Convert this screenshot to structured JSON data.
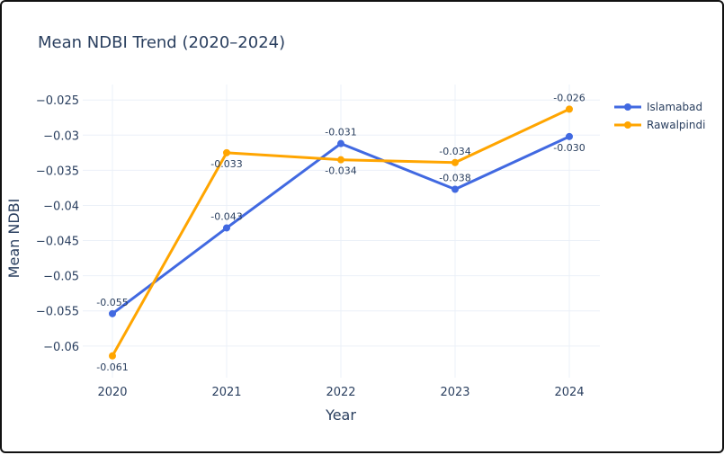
{
  "chart_data": {
    "type": "line",
    "title": "Mean NDBI Trend (2020–2024)",
    "xlabel": "Year",
    "ylabel": "Mean NDBI",
    "x": [
      "2020",
      "2021",
      "2022",
      "2023",
      "2024"
    ],
    "ylim": [
      -0.0645,
      -0.0228
    ],
    "yticks": [
      -0.025,
      -0.03,
      -0.035,
      -0.04,
      -0.045,
      -0.05,
      -0.055,
      -0.06
    ],
    "ytick_labels": [
      "−0.025",
      "−0.03",
      "−0.035",
      "−0.04",
      "−0.045",
      "−0.05",
      "−0.055",
      "−0.06"
    ],
    "grid": true,
    "legend_position": "top-right",
    "series": [
      {
        "name": "Islamabad",
        "color": "#4169e1",
        "values": [
          -0.0554,
          -0.0432,
          -0.0312,
          -0.0377,
          -0.0302
        ],
        "labels": [
          "-0.055",
          "-0.043",
          "-0.031",
          "-0.038",
          "-0.030"
        ]
      },
      {
        "name": "Rawalpindi",
        "color": "#ffa500",
        "values": [
          -0.0614,
          -0.0325,
          -0.0335,
          -0.0339,
          -0.0263
        ],
        "labels": [
          "-0.061",
          "-0.033",
          "-0.034",
          "-0.034",
          "-0.026"
        ]
      }
    ]
  }
}
